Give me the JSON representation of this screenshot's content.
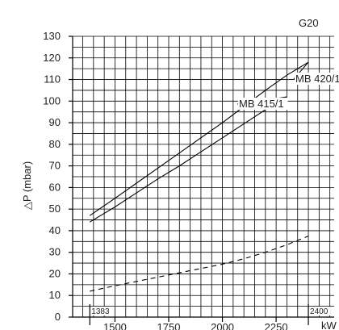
{
  "chart_data": {
    "type": "line",
    "title": "G20",
    "ylabel": "△P (mbar)",
    "xunit": "kW",
    "xlim": [
      1303,
      2520
    ],
    "ylim": [
      0,
      130
    ],
    "xticks": [
      1500,
      1750,
      2000,
      2250
    ],
    "yticks": [
      0,
      10,
      20,
      30,
      40,
      50,
      60,
      70,
      80,
      90,
      100,
      110,
      120,
      130
    ],
    "range_markers": [
      1383,
      2400
    ],
    "grid": true,
    "series": [
      {
        "name": "MB 420/1",
        "style": "solid",
        "x": [
          1383,
          1500,
          1600,
          1700,
          1800,
          1900,
          2000,
          2100,
          2200,
          2300,
          2400
        ],
        "y": [
          47,
          55,
          62,
          69,
          76,
          83,
          90,
          97.5,
          105,
          112,
          118
        ]
      },
      {
        "name": "MB 415/1",
        "style": "solid",
        "x": [
          1383,
          1500,
          1600,
          1700,
          1800,
          1900,
          2000,
          2100,
          2200,
          2300
        ],
        "y": [
          44,
          51,
          57.5,
          64,
          70,
          76.5,
          83,
          89.5,
          96,
          102
        ]
      },
      {
        "name": "",
        "style": "dashed",
        "x": [
          1383,
          1500,
          1600,
          1700,
          1800,
          1900,
          2000,
          2100,
          2200,
          2300,
          2400
        ],
        "y": [
          12,
          14.5,
          16.5,
          18.5,
          20.5,
          22.5,
          24.5,
          27,
          30,
          33.5,
          37.5
        ]
      }
    ]
  }
}
